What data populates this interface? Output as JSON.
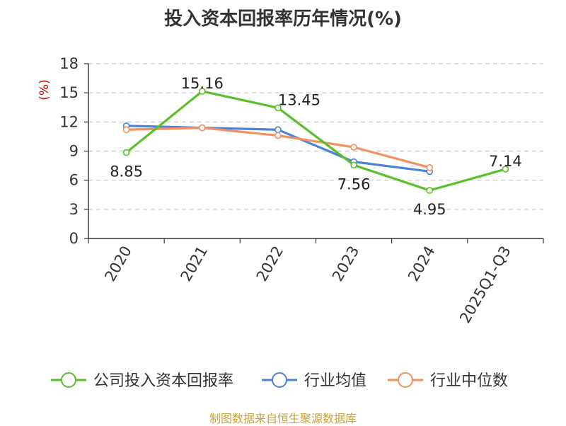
{
  "title": "投入资本回报率历年情况(%)",
  "source": "制图数据来自恒生聚源数据库",
  "chart_data": {
    "type": "line",
    "ylabel": "(%)",
    "ylim": [
      0,
      18
    ],
    "yticks": [
      "0",
      "3",
      "6",
      "9",
      "12",
      "15",
      "18"
    ],
    "categories": [
      "2020",
      "2021",
      "2022",
      "2023",
      "2024",
      "2025Q1-Q3"
    ],
    "grid": true,
    "legend_position": "bottom",
    "series": [
      {
        "name": "公司投入资本回报率",
        "color": "#5ac02a",
        "values": [
          8.85,
          15.16,
          13.45,
          7.56,
          4.95,
          7.14
        ],
        "labels": [
          "8.85",
          "15.16",
          "13.45",
          "7.56",
          "4.95",
          "7.14"
        ]
      },
      {
        "name": "行业均值",
        "color": "#4f80d9",
        "values": [
          11.6,
          11.4,
          11.2,
          7.9,
          6.9,
          null
        ]
      },
      {
        "name": "行业中位数",
        "color": "#f39060",
        "values": [
          11.2,
          11.4,
          10.6,
          9.4,
          7.3,
          null
        ]
      }
    ]
  }
}
